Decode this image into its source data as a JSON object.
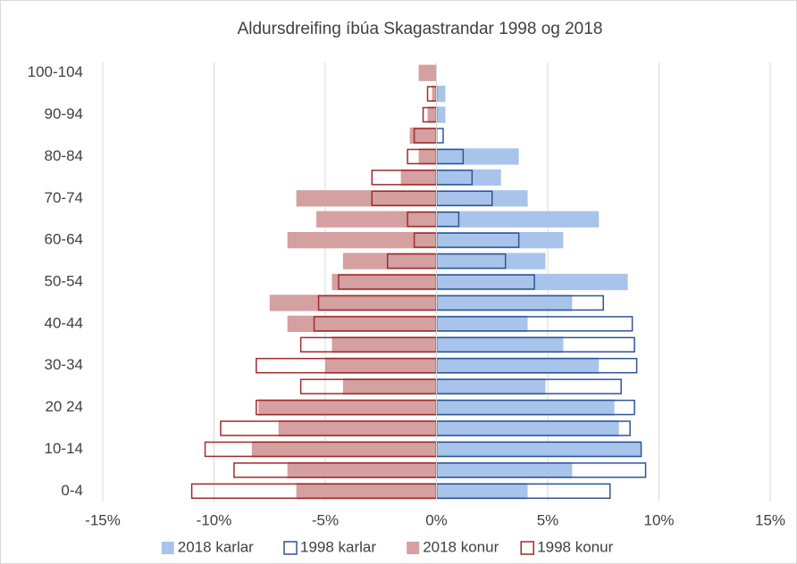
{
  "chart_data": {
    "type": "bar",
    "orientation": "horizontal",
    "title": "Aldursdreifing íbúa Skagastrandar 1998 og 2018",
    "categories": [
      "0-4",
      null,
      "10-14",
      null,
      "20 24",
      null,
      "30-34",
      null,
      "40-44",
      null,
      "50-54",
      null,
      "60-64",
      null,
      "70-74",
      null,
      "80-84",
      null,
      "90-94",
      null,
      "100-104"
    ],
    "series": [
      {
        "name": "2018 karlar",
        "color": "#a9c4eb",
        "outline": false,
        "values": [
          4.1,
          6.1,
          9.2,
          8.2,
          8.0,
          4.9,
          7.3,
          5.7,
          4.1,
          6.1,
          8.6,
          4.9,
          5.7,
          7.3,
          4.1,
          2.9,
          3.7,
          0,
          0.4,
          0.4,
          0
        ]
      },
      {
        "name": "1998 karlar",
        "color": "#2f5597",
        "outline": true,
        "values": [
          7.8,
          9.4,
          9.2,
          8.7,
          8.9,
          8.3,
          9.0,
          8.9,
          8.8,
          7.5,
          4.4,
          3.1,
          3.7,
          1.0,
          2.5,
          1.6,
          1.2,
          0.3,
          0,
          0,
          0
        ]
      },
      {
        "name": "2018 konur",
        "color": "#d4a0a0",
        "outline": false,
        "values": [
          -6.3,
          -6.7,
          -8.3,
          -7.1,
          -8.0,
          -4.2,
          -5.0,
          -4.7,
          -6.7,
          -7.5,
          -4.7,
          -4.2,
          -6.7,
          -5.4,
          -6.3,
          -1.6,
          -0.8,
          -1.2,
          -0.4,
          -0.2,
          -0.8
        ]
      },
      {
        "name": "1998 konur",
        "color": "#a02b2b",
        "outline": true,
        "values": [
          -11.0,
          -9.1,
          -10.4,
          -9.7,
          -8.1,
          -6.1,
          -8.1,
          -6.1,
          -5.5,
          -5.3,
          -4.4,
          -2.2,
          -1.0,
          -1.3,
          -2.9,
          -2.9,
          -1.3,
          -1.0,
          -0.6,
          -0.4,
          0
        ]
      }
    ],
    "xlim": [
      -15,
      15
    ],
    "xticks": [
      {
        "value": -15,
        "label": "-15%"
      },
      {
        "value": -10,
        "label": "-10%"
      },
      {
        "value": -5,
        "label": "-5%"
      },
      {
        "value": 0,
        "label": "0%"
      },
      {
        "value": 5,
        "label": "5%"
      },
      {
        "value": 10,
        "label": "10%"
      },
      {
        "value": 15,
        "label": "15%"
      }
    ],
    "grid": true,
    "legend": "bottom"
  }
}
